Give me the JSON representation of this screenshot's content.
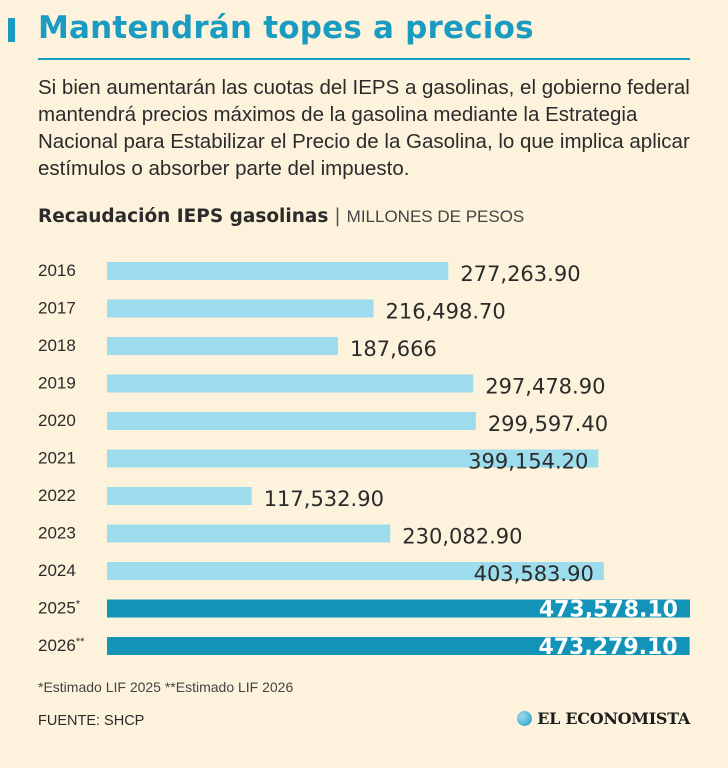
{
  "title": "Mantendrán topes a precios",
  "intro": "Si bien aumentarán las cuotas del IEPS a gasolinas, el gobierno federal mantendrá precios máximos de la gasolina mediante la Estrategia Nacional para Estabilizar el Precio de la Gasolina, lo que implica aplicar estímulos o absorber parte del impuesto.",
  "chart_data": {
    "type": "bar",
    "orientation": "horizontal",
    "title": "Recaudación IEPS gasolinas",
    "unit_label": "MILLONES DE PESOS",
    "categories": [
      "2016",
      "2017",
      "2018",
      "2019",
      "2020",
      "2021",
      "2022",
      "2023",
      "2024",
      "2025*",
      "2026**"
    ],
    "values": [
      277263.9,
      216498.7,
      187666,
      297478.9,
      299597.4,
      399154.2,
      117532.9,
      230082.9,
      403583.9,
      473578.1,
      473279.1
    ],
    "value_labels": [
      "277,263.90",
      "216,498.70",
      "187,666",
      "297,478.90",
      "299,597.40",
      "399,154.20",
      "117,532.90",
      "230,082.90",
      "403,583.90",
      "473,578.10",
      "473,279.10"
    ],
    "estimated": [
      false,
      false,
      false,
      false,
      false,
      false,
      false,
      false,
      false,
      true,
      true
    ],
    "colors": {
      "actual": "#9ddcec",
      "estimated": "#1493b9",
      "text": "#2b2b2b",
      "estimated_text": "#ffffff"
    },
    "xlim": [
      0,
      473578.1
    ]
  },
  "footnote": "*Estimado LIF 2025 **Estimado LIF 2026",
  "source": "FUENTE: SHCP",
  "brand": "EL ECONOMISTA",
  "accent_color": "#1a9bc1",
  "background_color": "#fdf3dc"
}
